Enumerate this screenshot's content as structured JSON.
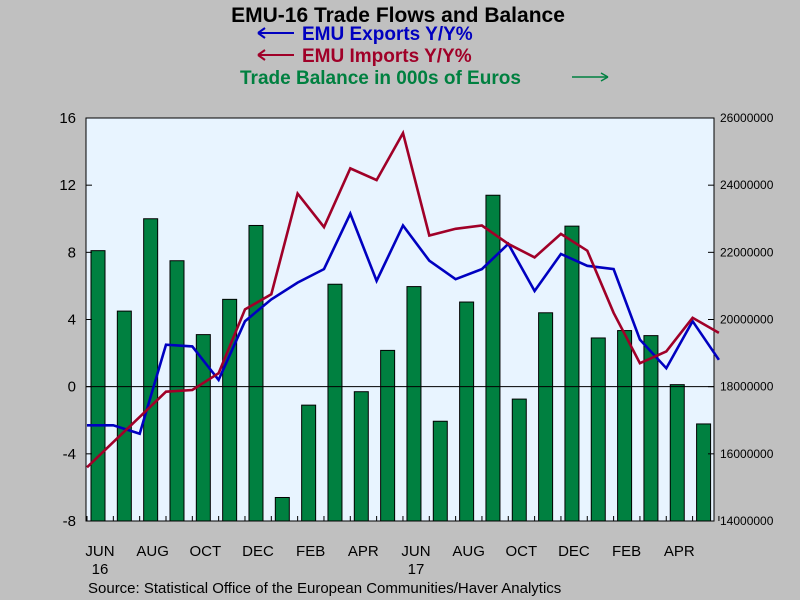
{
  "chart_data": {
    "type": "bar",
    "title": "EMU-16 Trade Flows and Balance",
    "source": "Source:  Statistical Office of the European Communities/Haver Analytics",
    "legend": [
      {
        "text": "EMU Exports Y/Y%",
        "arrow": "left",
        "color": "#0000c0"
      },
      {
        "text": "EMU Imports Y/Y%",
        "arrow": "left",
        "color": "#a00028"
      },
      {
        "text": "Trade Balance in 000s of Euros",
        "arrow": "right",
        "color": "#008040"
      }
    ],
    "x_tick_labels": [
      {
        "index": 0,
        "label": "JUN",
        "sub": "16"
      },
      {
        "index": 2,
        "label": "AUG"
      },
      {
        "index": 4,
        "label": "OCT"
      },
      {
        "index": 6,
        "label": "DEC"
      },
      {
        "index": 8,
        "label": "FEB"
      },
      {
        "index": 10,
        "label": "APR"
      },
      {
        "index": 12,
        "label": "JUN",
        "sub": "17"
      },
      {
        "index": 14,
        "label": "AUG"
      },
      {
        "index": 16,
        "label": "OCT"
      },
      {
        "index": 18,
        "label": "DEC"
      },
      {
        "index": 20,
        "label": "FEB"
      },
      {
        "index": 22,
        "label": "APR"
      }
    ],
    "left_axis": {
      "ylim": [
        -8,
        16
      ],
      "ticks": [
        -8,
        -4,
        0,
        4,
        8,
        12,
        16
      ],
      "tick_labels": [
        "-8",
        "-4",
        "0",
        "4",
        "8",
        "12",
        "16"
      ]
    },
    "right_axis": {
      "ylim": [
        14000000,
        26000000
      ],
      "ticks": [
        14000000,
        16000000,
        18000000,
        20000000,
        22000000,
        24000000,
        26000000
      ],
      "tick_labels": [
        "14000000",
        "16000000",
        "18000000",
        "20000000",
        "22000000",
        "24000000",
        "26000000"
      ]
    },
    "series": [
      {
        "name": "Trade Balance in 000s of Euros",
        "type": "bar",
        "axis": "right",
        "color": "#008040",
        "values": [
          22050000,
          20250000,
          23000000,
          21750000,
          19550000,
          20600000,
          22800000,
          14700000,
          17450000,
          21050000,
          17850000,
          19080000,
          20980000,
          16970000,
          20520000,
          23700000,
          17630000,
          20200000,
          22780000,
          19450000,
          19670000,
          19520000,
          18060000,
          16890000
        ]
      },
      {
        "name": "EMU Exports Y/Y%",
        "type": "line",
        "axis": "left",
        "color": "#0000c0",
        "values": [
          -2.3,
          -2.3,
          -2.8,
          2.5,
          2.4,
          0.4,
          3.9,
          5.2,
          6.2,
          7.0,
          10.3,
          6.3,
          9.6,
          7.5,
          6.4,
          7.0,
          8.5,
          5.7,
          7.9,
          7.2,
          7.0,
          2.8,
          1.1,
          3.9,
          1.6
        ]
      },
      {
        "name": "EMU Imports Y/Y%",
        "type": "line",
        "axis": "left",
        "color": "#a00028",
        "values": [
          -4.8,
          -3.3,
          -1.8,
          -0.3,
          -0.2,
          0.8,
          4.6,
          5.5,
          11.5,
          9.5,
          13.0,
          12.3,
          15.1,
          9.0,
          9.4,
          9.6,
          8.5,
          7.7,
          9.1,
          8.1,
          4.4,
          1.4,
          2.1,
          4.1,
          3.2
        ]
      }
    ],
    "zero_line": 0,
    "grid": false,
    "legend_placement": "top"
  }
}
